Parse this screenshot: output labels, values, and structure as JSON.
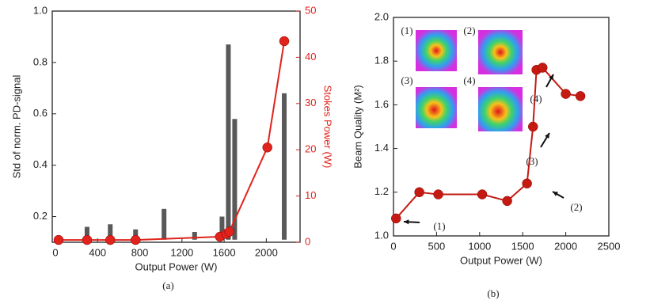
{
  "chart_data": [
    {
      "type": "scatter",
      "xlabel": "Output Power (W)",
      "ylabel": "Std of norm. PD-signal",
      "y2label": "Stokes Power (W)",
      "caption": "(a)",
      "xlim": [
        -30,
        2320
      ],
      "xticks": [
        0,
        400,
        800,
        1200,
        1600,
        2000
      ],
      "ylim": [
        0.1,
        1.0
      ],
      "yticks": [
        0.2,
        0.4,
        0.6,
        0.8,
        {
          "value": 1.0,
          "label": "1.0"
        }
      ],
      "y2lim": [
        0,
        50
      ],
      "y2ticks": [
        0,
        10,
        20,
        30,
        40,
        50
      ],
      "ranges": {
        "color": "#222222",
        "x": [
          300,
          520,
          760,
          1030,
          1320,
          1580,
          1640,
          1700,
          2170
        ],
        "low": [
          0.11,
          0.11,
          0.11,
          0.11,
          0.11,
          0.11,
          0.11,
          0.11,
          0.11
        ],
        "high": [
          0.16,
          0.17,
          0.15,
          0.23,
          0.14,
          0.2,
          0.87,
          0.58,
          0.68
        ]
      },
      "series": [
        {
          "axis": "y2",
          "color": "#e0231c",
          "x": [
            30,
            300,
            520,
            760,
            1560,
            1620,
            1650,
            2010,
            2170
          ],
          "values": [
            0.5,
            0.5,
            0.5,
            0.5,
            1.2,
            1.8,
            2.3,
            20.5,
            43.5
          ]
        }
      ]
    },
    {
      "type": "line",
      "xlabel": "Output Power (W)",
      "ylabel": "Beam Quality (M²)",
      "caption": "(b)",
      "xlim": [
        0,
        2500
      ],
      "xticks": [
        0,
        500,
        1000,
        1500,
        2000,
        2500
      ],
      "ylim": [
        1.0,
        2.0
      ],
      "yticks": [
        {
          "value": 1.0,
          "label": "1.0"
        },
        1.2,
        1.4,
        1.6,
        1.8,
        {
          "value": 2.0,
          "label": "2.0"
        }
      ],
      "series": [
        {
          "color": "#c41a12",
          "x": [
            30,
            300,
            520,
            1030,
            1320,
            1550,
            1620,
            1660,
            1730,
            2000,
            2170
          ],
          "values": [
            1.08,
            1.2,
            1.19,
            1.19,
            1.16,
            1.24,
            1.5,
            1.76,
            1.77,
            1.65,
            1.64
          ]
        }
      ],
      "annotations": [
        "(1)",
        "(2)",
        "(3)",
        "(4)"
      ],
      "inset_labels": [
        "(1)",
        "(2)",
        "(3)",
        "(4)"
      ]
    }
  ]
}
